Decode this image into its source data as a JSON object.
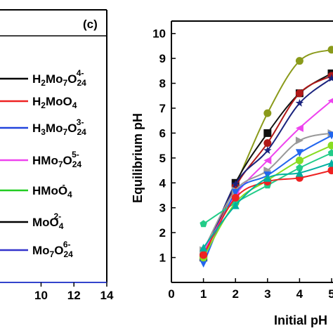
{
  "chart_data": [
    {
      "type": "line",
      "panel_label": "(c)",
      "xticks": [
        "10",
        "12",
        "14"
      ],
      "x_range": [
        7.5,
        14
      ],
      "legend": [
        {
          "base": "H2Mo7O24",
          "display": [
            [
              "H",
              ""
            ],
            [
              "2",
              "sub"
            ],
            [
              "Mo",
              ""
            ],
            [
              "7",
              "sub"
            ],
            [
              "O",
              ""
            ],
            [
              "24",
              "sub"
            ],
            [
              "4-",
              "sup"
            ]
          ],
          "color": "#000000"
        },
        {
          "base": "H2MoO4",
          "display": [
            [
              "H",
              ""
            ],
            [
              "2",
              "sub"
            ],
            [
              "MoO",
              ""
            ],
            [
              "4",
              "sub"
            ]
          ],
          "color": "#ee2222"
        },
        {
          "base": "H3Mo7O24",
          "display": [
            [
              "H",
              ""
            ],
            [
              "3",
              "sub"
            ],
            [
              "Mo",
              ""
            ],
            [
              "7",
              "sub"
            ],
            [
              "O",
              ""
            ],
            [
              "24",
              "sub"
            ],
            [
              "3-",
              "sup"
            ]
          ],
          "color": "#2244dd"
        },
        {
          "base": "HMo7O24",
          "display": [
            [
              "HMo",
              ""
            ],
            [
              "7",
              "sub"
            ],
            [
              "O",
              ""
            ],
            [
              "24",
              "sub"
            ],
            [
              "5-",
              "sup"
            ]
          ],
          "color": "#ee44ee"
        },
        {
          "base": "HMoO4",
          "display": [
            [
              "HMoO",
              ""
            ],
            [
              "4",
              "sub"
            ],
            [
              "-",
              "sup"
            ]
          ],
          "color": "#22cc22"
        },
        {
          "base": "MoO4",
          "display": [
            [
              "MoO",
              ""
            ],
            [
              "4",
              "sub"
            ],
            [
              "2-",
              "sup"
            ]
          ],
          "color": "#000000"
        },
        {
          "base": "Mo7O24",
          "display": [
            [
              "Mo",
              ""
            ],
            [
              "7",
              "sub"
            ],
            [
              "O",
              ""
            ],
            [
              "24",
              "sub"
            ],
            [
              "6-",
              "sup"
            ]
          ],
          "color": "#3333cc"
        }
      ]
    },
    {
      "type": "line",
      "xlabel": "Initial pH",
      "ylabel": "Equilibrium pH",
      "xlim": [
        0,
        5
      ],
      "ylim": [
        0,
        10.5
      ],
      "xticks": [
        0,
        1,
        2,
        3,
        4,
        5
      ],
      "yticks": [
        1,
        2,
        3,
        4,
        5,
        6,
        7,
        8,
        9,
        10
      ],
      "x": [
        1,
        2,
        3,
        4,
        5
      ],
      "series": [
        {
          "color": "#8a9a1a",
          "marker": "circle",
          "values": [
            1.1,
            3.9,
            6.8,
            8.9,
            9.35
          ]
        },
        {
          "color": "#111111",
          "marker": "square",
          "values": [
            1.0,
            4.0,
            6.0,
            7.6,
            8.4
          ]
        },
        {
          "color": "#b01818",
          "marker": "circle",
          "values": [
            1.05,
            3.85,
            5.6,
            7.6,
            8.3
          ]
        },
        {
          "color": "#1a237e",
          "marker": "star",
          "values": [
            0.95,
            3.95,
            5.3,
            7.2,
            8.2
          ]
        },
        {
          "color": "#ee44ee",
          "marker": "triangle-left",
          "values": [
            1.2,
            3.5,
            4.9,
            6.2,
            7.3
          ]
        },
        {
          "color": "#999999",
          "marker": "triangle-right",
          "values": [
            1.3,
            3.7,
            4.5,
            5.7,
            6.0
          ]
        },
        {
          "color": "#2266ee",
          "marker": "triangle-down",
          "values": [
            0.75,
            3.6,
            4.3,
            5.2,
            5.9
          ]
        },
        {
          "color": "#88dd22",
          "marker": "circle",
          "values": [
            1.0,
            3.2,
            4.1,
            4.9,
            5.5
          ]
        },
        {
          "color": "#22cc88",
          "marker": "pentagon",
          "values": [
            2.35,
            3.2,
            3.9,
            4.6,
            5.2
          ]
        },
        {
          "color": "#ee2222",
          "marker": "circle",
          "values": [
            1.1,
            3.4,
            4.05,
            4.2,
            4.5
          ]
        },
        {
          "color": "#00b0a0",
          "marker": "triangle",
          "values": [
            1.4,
            3.1,
            4.2,
            4.4,
            4.8
          ]
        }
      ]
    }
  ]
}
